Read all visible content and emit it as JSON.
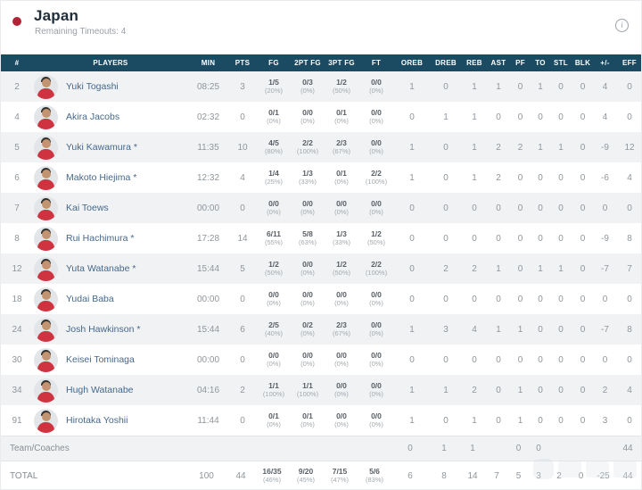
{
  "header": {
    "team_name": "Japan",
    "timeouts_label": "Remaining Timeouts: 4",
    "info_icon_glyph": "i"
  },
  "colors": {
    "team_dot": "#b22335",
    "header_bar": "#1b4a63",
    "row_alt": "#f0f2f4",
    "player_name_text": "#46688b",
    "jersey_red": "#cf3340"
  },
  "table": {
    "columns": [
      "#",
      "PLAYERS",
      "MIN",
      "PTS",
      "FG",
      "2PT FG",
      "3PT FG",
      "FT",
      "OREB",
      "DREB",
      "REB",
      "AST",
      "PF",
      "TO",
      "STL",
      "BLK",
      "+/-",
      "EFF"
    ],
    "players": [
      {
        "num": "2",
        "name": "Yuki Togashi",
        "min": "08:25",
        "pts": "3",
        "fg": "1/5",
        "fgp": "(20%)",
        "p2": "0/3",
        "p2p": "(0%)",
        "p3": "1/2",
        "p3p": "(50%)",
        "ft": "0/0",
        "ftp": "(0%)",
        "oreb": "1",
        "dreb": "0",
        "reb": "1",
        "ast": "1",
        "pf": "0",
        "to": "1",
        "stl": "0",
        "blk": "0",
        "pm": "4",
        "eff": "0"
      },
      {
        "num": "4",
        "name": "Akira Jacobs",
        "min": "02:32",
        "pts": "0",
        "fg": "0/1",
        "fgp": "(0%)",
        "p2": "0/0",
        "p2p": "(0%)",
        "p3": "0/1",
        "p3p": "(0%)",
        "ft": "0/0",
        "ftp": "(0%)",
        "oreb": "0",
        "dreb": "1",
        "reb": "1",
        "ast": "0",
        "pf": "0",
        "to": "0",
        "stl": "0",
        "blk": "0",
        "pm": "4",
        "eff": "0"
      },
      {
        "num": "5",
        "name": "Yuki Kawamura *",
        "min": "11:35",
        "pts": "10",
        "fg": "4/5",
        "fgp": "(80%)",
        "p2": "2/2",
        "p2p": "(100%)",
        "p3": "2/3",
        "p3p": "(67%)",
        "ft": "0/0",
        "ftp": "(0%)",
        "oreb": "1",
        "dreb": "0",
        "reb": "1",
        "ast": "2",
        "pf": "2",
        "to": "1",
        "stl": "1",
        "blk": "0",
        "pm": "-9",
        "eff": "12"
      },
      {
        "num": "6",
        "name": "Makoto Hiejima *",
        "min": "12:32",
        "pts": "4",
        "fg": "1/4",
        "fgp": "(25%)",
        "p2": "1/3",
        "p2p": "(33%)",
        "p3": "0/1",
        "p3p": "(0%)",
        "ft": "2/2",
        "ftp": "(100%)",
        "oreb": "1",
        "dreb": "0",
        "reb": "1",
        "ast": "2",
        "pf": "0",
        "to": "0",
        "stl": "0",
        "blk": "0",
        "pm": "-6",
        "eff": "4"
      },
      {
        "num": "7",
        "name": "Kai Toews",
        "min": "00:00",
        "pts": "0",
        "fg": "0/0",
        "fgp": "(0%)",
        "p2": "0/0",
        "p2p": "(0%)",
        "p3": "0/0",
        "p3p": "(0%)",
        "ft": "0/0",
        "ftp": "(0%)",
        "oreb": "0",
        "dreb": "0",
        "reb": "0",
        "ast": "0",
        "pf": "0",
        "to": "0",
        "stl": "0",
        "blk": "0",
        "pm": "0",
        "eff": "0"
      },
      {
        "num": "8",
        "name": "Rui Hachimura *",
        "min": "17:28",
        "pts": "14",
        "fg": "6/11",
        "fgp": "(55%)",
        "p2": "5/8",
        "p2p": "(63%)",
        "p3": "1/3",
        "p3p": "(33%)",
        "ft": "1/2",
        "ftp": "(50%)",
        "oreb": "0",
        "dreb": "0",
        "reb": "0",
        "ast": "0",
        "pf": "0",
        "to": "0",
        "stl": "0",
        "blk": "0",
        "pm": "-9",
        "eff": "8"
      },
      {
        "num": "12",
        "name": "Yuta Watanabe *",
        "min": "15:44",
        "pts": "5",
        "fg": "1/2",
        "fgp": "(50%)",
        "p2": "0/0",
        "p2p": "(0%)",
        "p3": "1/2",
        "p3p": "(50%)",
        "ft": "2/2",
        "ftp": "(100%)",
        "oreb": "0",
        "dreb": "2",
        "reb": "2",
        "ast": "1",
        "pf": "0",
        "to": "1",
        "stl": "1",
        "blk": "0",
        "pm": "-7",
        "eff": "7"
      },
      {
        "num": "18",
        "name": "Yudai Baba",
        "min": "00:00",
        "pts": "0",
        "fg": "0/0",
        "fgp": "(0%)",
        "p2": "0/0",
        "p2p": "(0%)",
        "p3": "0/0",
        "p3p": "(0%)",
        "ft": "0/0",
        "ftp": "(0%)",
        "oreb": "0",
        "dreb": "0",
        "reb": "0",
        "ast": "0",
        "pf": "0",
        "to": "0",
        "stl": "0",
        "blk": "0",
        "pm": "0",
        "eff": "0"
      },
      {
        "num": "24",
        "name": "Josh Hawkinson *",
        "min": "15:44",
        "pts": "6",
        "fg": "2/5",
        "fgp": "(40%)",
        "p2": "0/2",
        "p2p": "(0%)",
        "p3": "2/3",
        "p3p": "(67%)",
        "ft": "0/0",
        "ftp": "(0%)",
        "oreb": "1",
        "dreb": "3",
        "reb": "4",
        "ast": "1",
        "pf": "1",
        "to": "0",
        "stl": "0",
        "blk": "0",
        "pm": "-7",
        "eff": "8"
      },
      {
        "num": "30",
        "name": "Keisei Tominaga",
        "min": "00:00",
        "pts": "0",
        "fg": "0/0",
        "fgp": "(0%)",
        "p2": "0/0",
        "p2p": "(0%)",
        "p3": "0/0",
        "p3p": "(0%)",
        "ft": "0/0",
        "ftp": "(0%)",
        "oreb": "0",
        "dreb": "0",
        "reb": "0",
        "ast": "0",
        "pf": "0",
        "to": "0",
        "stl": "0",
        "blk": "0",
        "pm": "0",
        "eff": "0"
      },
      {
        "num": "34",
        "name": "Hugh Watanabe",
        "min": "04:16",
        "pts": "2",
        "fg": "1/1",
        "fgp": "(100%)",
        "p2": "1/1",
        "p2p": "(100%)",
        "p3": "0/0",
        "p3p": "(0%)",
        "ft": "0/0",
        "ftp": "(0%)",
        "oreb": "1",
        "dreb": "1",
        "reb": "2",
        "ast": "0",
        "pf": "1",
        "to": "0",
        "stl": "0",
        "blk": "0",
        "pm": "2",
        "eff": "4"
      },
      {
        "num": "91",
        "name": "Hirotaka Yoshii",
        "min": "11:44",
        "pts": "0",
        "fg": "0/1",
        "fgp": "(0%)",
        "p2": "0/1",
        "p2p": "(0%)",
        "p3": "0/0",
        "p3p": "(0%)",
        "ft": "0/0",
        "ftp": "(0%)",
        "oreb": "1",
        "dreb": "0",
        "reb": "1",
        "ast": "0",
        "pf": "1",
        "to": "0",
        "stl": "0",
        "blk": "0",
        "pm": "3",
        "eff": "0"
      }
    ],
    "team_row": {
      "label": "Team/Coaches",
      "min": "",
      "pts": "",
      "oreb": "0",
      "dreb": "1",
      "reb": "1",
      "ast": "",
      "pf": "0",
      "to": "0",
      "stl": "",
      "blk": "",
      "pm": "",
      "eff": "44"
    },
    "total_row": {
      "label": "TOTAL",
      "min": "100",
      "pts": "44",
      "fg": "16/35",
      "fgp": "(46%)",
      "p2": "9/20",
      "p2p": "(45%)",
      "p3": "7/15",
      "p3p": "(47%)",
      "ft": "5/6",
      "ftp": "(83%)",
      "oreb": "6",
      "dreb": "8",
      "reb": "14",
      "ast": "7",
      "pf": "5",
      "to": "3",
      "stl": "2",
      "blk": "0",
      "pm": "-25",
      "eff": "44"
    }
  }
}
